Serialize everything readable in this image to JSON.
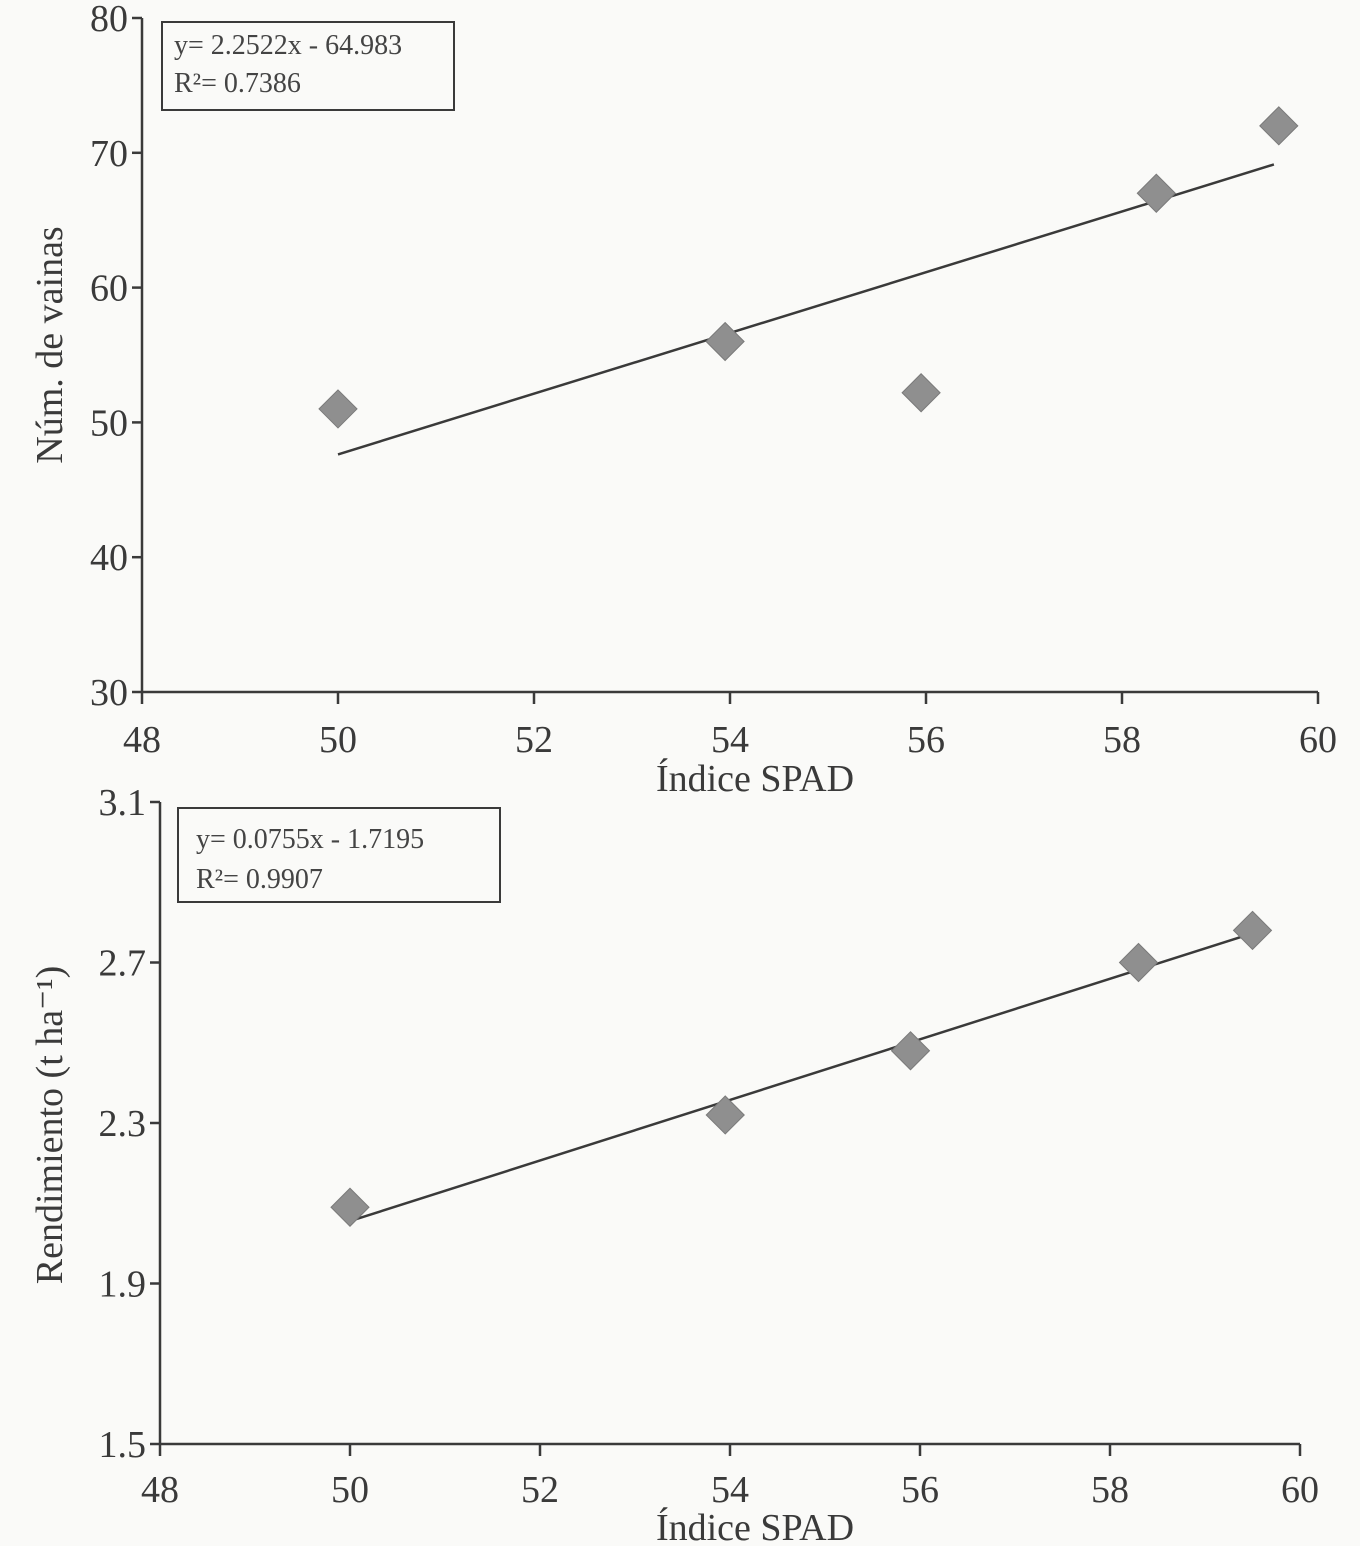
{
  "colors": {
    "marker": "#8f8f8f",
    "axis": "#3a3a3a",
    "line": "#3a3a3a",
    "text": "#3a3a3a"
  },
  "chart_data": [
    {
      "type": "scatter",
      "xlabel": "Índice SPAD",
      "ylabel": "Núm. de vainas",
      "xlim": [
        48,
        60
      ],
      "ylim": [
        30,
        80
      ],
      "x_ticks": [
        "48",
        "50",
        "52",
        "54",
        "56",
        "58",
        "60"
      ],
      "y_ticks": [
        "30",
        "40",
        "50",
        "60",
        "70",
        "80"
      ],
      "series": [
        {
          "points": [
            [
              50.0,
              51.0
            ],
            [
              53.95,
              56.0
            ],
            [
              55.95,
              52.2
            ],
            [
              58.35,
              67.0
            ],
            [
              59.6,
              72.0
            ]
          ]
        }
      ],
      "trendline": {
        "x": [
          50.0,
          59.55
        ],
        "equation": "y= 2.2522x - 64.983",
        "r2": "R²= 0.7386",
        "slope": 2.2522,
        "intercept": -64.983
      }
    },
    {
      "type": "scatter",
      "xlabel": "Índice SPAD",
      "ylabel": "Rendimiento (t ha⁻¹)",
      "xlim": [
        48,
        60
      ],
      "ylim": [
        1.5,
        3.1
      ],
      "x_ticks": [
        "48",
        "50",
        "52",
        "54",
        "56",
        "58",
        "60"
      ],
      "y_ticks": [
        "1.5",
        "1.9",
        "2.3",
        "2.7",
        "3.1"
      ],
      "series": [
        {
          "points": [
            [
              50.0,
              2.09
            ],
            [
              53.95,
              2.32
            ],
            [
              55.9,
              2.48
            ],
            [
              58.3,
              2.7
            ],
            [
              59.5,
              2.78
            ]
          ]
        }
      ],
      "trendline": {
        "x": [
          50.0,
          59.5
        ],
        "equation": "y= 0.0755x - 1.7195",
        "r2": "R²= 0.9907",
        "slope": 0.0755,
        "intercept": -1.7195
      }
    }
  ]
}
